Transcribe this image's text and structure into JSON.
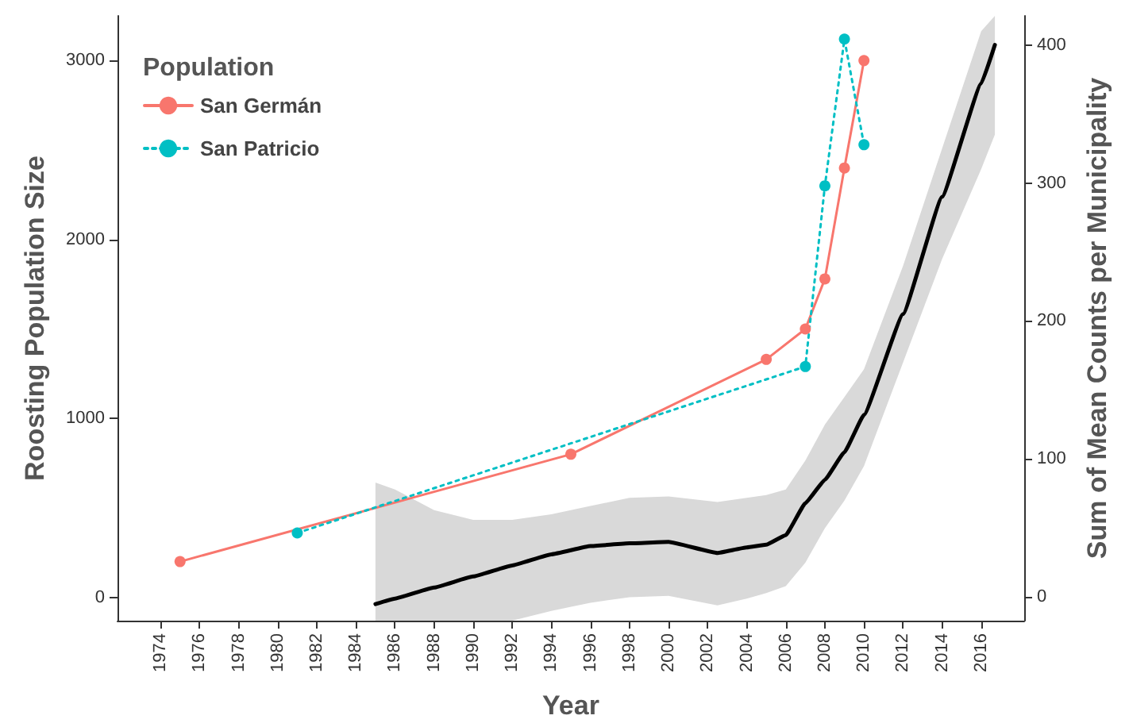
{
  "chart_data": {
    "type": "line",
    "xlabel": "Year",
    "ylabel": "Roosting Population Size",
    "y2label": "Sum of Mean Counts per Municipality",
    "legend_title": "Population",
    "legend": "top left",
    "grid": false,
    "marker": "circle",
    "xlim": [
      1971.8,
      2018.2
    ],
    "xticks": [
      1974,
      1976,
      1978,
      1980,
      1982,
      1984,
      1986,
      1988,
      1990,
      1992,
      1994,
      1996,
      1998,
      2000,
      2002,
      2004,
      2006,
      2008,
      2010,
      2012,
      2014,
      2016
    ],
    "ylim": [
      -130,
      3250
    ],
    "yticks": [
      0,
      1000,
      2000,
      3000
    ],
    "y2lim": [
      -17,
      421
    ],
    "y2ticks": [
      0,
      100,
      200,
      300,
      400
    ],
    "series": [
      {
        "name": "San Germán",
        "color": "#f8766d",
        "line_style": "solid",
        "x": [
          1975,
          1995,
          2005,
          2007,
          2008,
          2009,
          2010
        ],
        "values": [
          200,
          800,
          1330,
          1500,
          1780,
          2400,
          3000
        ]
      },
      {
        "name": "San Patricio",
        "color": "#00bfc4",
        "line_style": "dotted",
        "x": [
          1981,
          2007,
          2008,
          2009,
          2010
        ],
        "values": [
          360,
          1290,
          2300,
          3120,
          2530
        ]
      },
      {
        "color": "#000000",
        "axis": "y2",
        "marker": "none",
        "line_style": "solid",
        "x": [
          1985,
          1986,
          1988,
          1990,
          1992,
          1994,
          1996,
          1998,
          2000,
          2002.5,
          2004,
          2005,
          2006,
          2007,
          2008,
          2009,
          2010,
          2012,
          2014,
          2016,
          2016.7
        ],
        "values": [
          -5,
          -1,
          7,
          15,
          23,
          31,
          37,
          39,
          40,
          32,
          36,
          38,
          45,
          68,
          85,
          105,
          132,
          205,
          290,
          372,
          400
        ],
        "lower": [
          -17,
          -17,
          -17,
          -17,
          -17,
          -10,
          -4,
          0,
          1,
          -6,
          -1,
          3,
          8,
          25,
          50,
          70,
          95,
          170,
          245,
          310,
          335
        ],
        "upper": [
          83,
          78,
          63,
          56,
          56,
          60,
          66,
          72,
          73,
          69,
          72,
          74,
          78,
          99,
          125,
          145,
          165,
          240,
          325,
          410,
          421
        ]
      }
    ]
  }
}
